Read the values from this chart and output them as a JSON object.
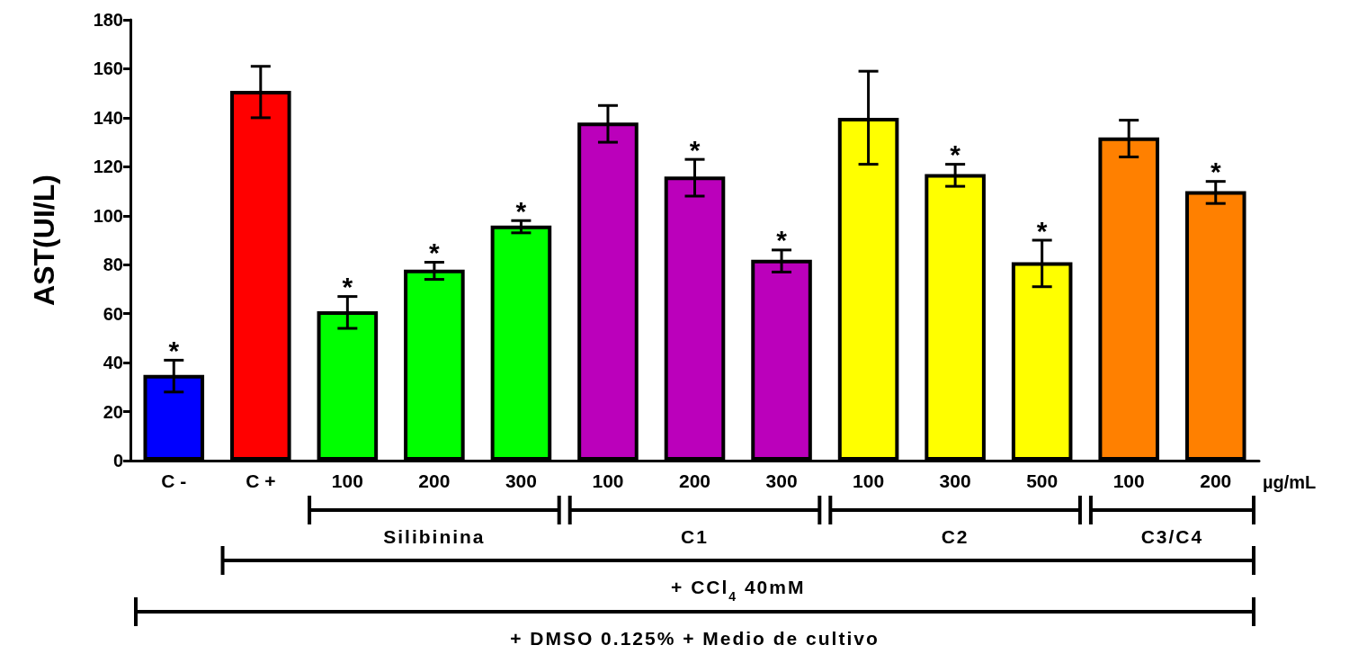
{
  "chart_data": {
    "type": "bar",
    "ylabel": "AST(UI/L)",
    "xlabel": "µg/mL",
    "categories": [
      "C -",
      "C +",
      "100",
      "200",
      "300",
      "100",
      "200",
      "300",
      "100",
      "300",
      "500",
      "100",
      "200"
    ],
    "values": [
      35,
      151,
      61,
      78,
      96,
      138,
      116,
      82,
      140,
      117,
      81,
      132,
      110
    ],
    "colors": [
      "#0000ff",
      "#ff0000",
      "#00ff00",
      "#00ff00",
      "#00ff00",
      "#bb00bb",
      "#bb00bb",
      "#bb00bb",
      "#ffff00",
      "#ffff00",
      "#ffff00",
      "#ff8000",
      "#ff8000"
    ],
    "errors": [
      [
        28,
        41
      ],
      [
        140,
        161
      ],
      [
        54,
        67
      ],
      [
        74,
        81
      ],
      [
        93,
        98
      ],
      [
        130,
        145
      ],
      [
        108,
        123
      ],
      [
        77,
        86
      ],
      [
        121,
        159
      ],
      [
        112,
        121
      ],
      [
        71,
        90
      ],
      [
        124,
        139
      ],
      [
        105,
        114
      ]
    ],
    "value_labels": [
      "*",
      null,
      "*",
      "*",
      "*",
      null,
      "*",
      "*",
      null,
      "*",
      "*",
      null,
      "*"
    ],
    "ylim": [
      0,
      180
    ],
    "yticks": [
      0,
      20,
      40,
      60,
      80,
      100,
      120,
      140,
      160,
      180
    ],
    "grid": false,
    "annotations": [
      "Silibinina",
      "C1",
      "C2",
      "C3/C4",
      "+ CCl$_{4}$ 40mM",
      "+ DMSO 0.125% + Medio de cultivo"
    ]
  }
}
